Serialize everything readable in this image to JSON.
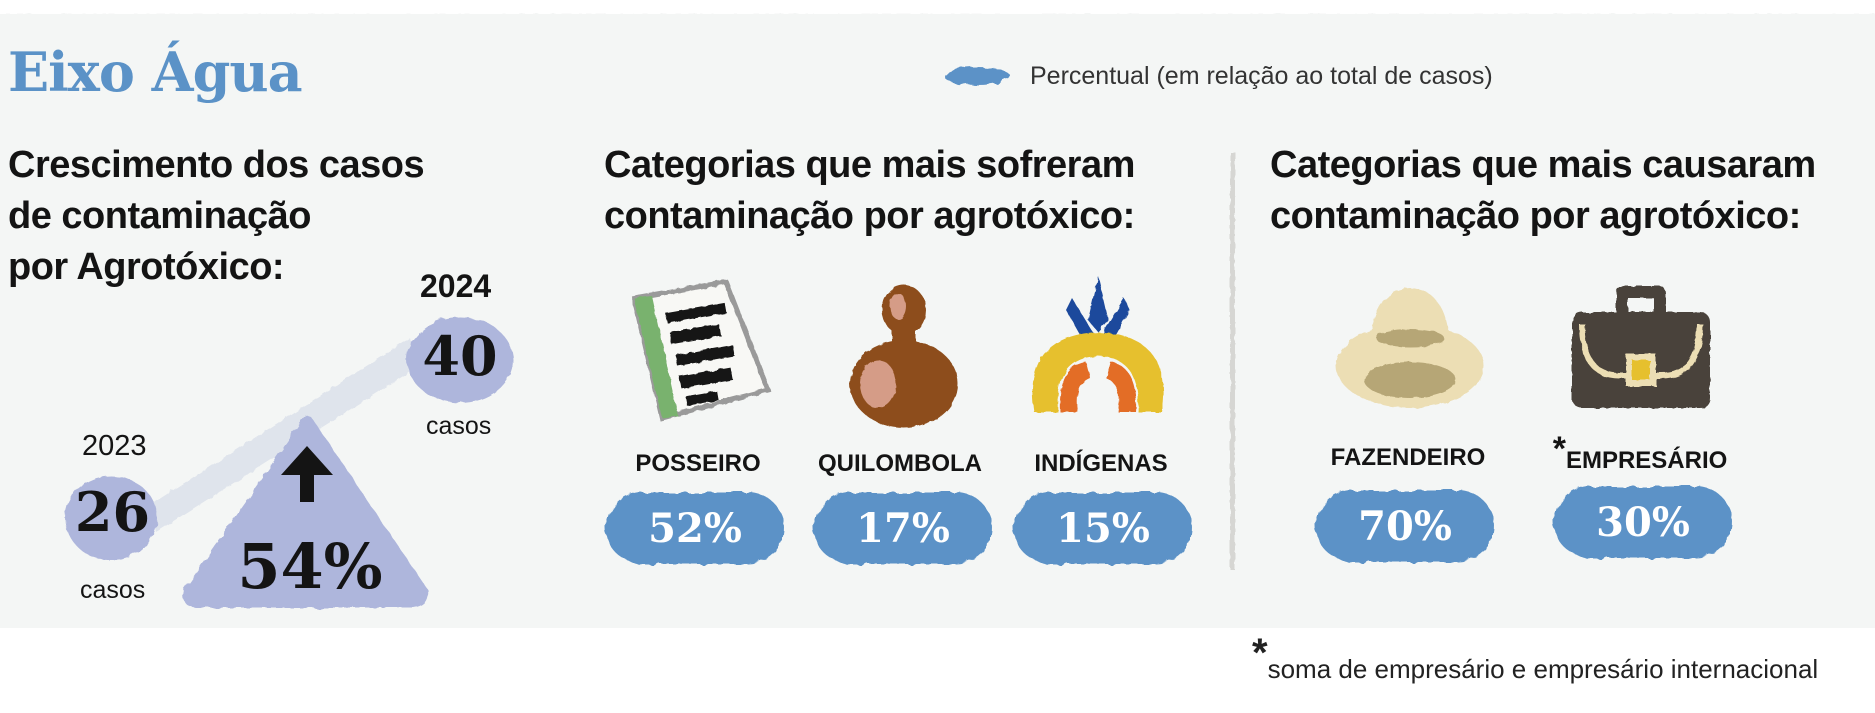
{
  "title": "Eixo Água",
  "legend": {
    "label": "Percentual (em relação ao total de casos)",
    "swatch_color": "#5b92c7"
  },
  "growth": {
    "heading_lines": [
      "Crescimento dos casos",
      "de contaminação",
      "por Agrotóxico:"
    ],
    "start": {
      "year": "2023",
      "count": "26",
      "unit": "casos"
    },
    "end": {
      "year": "2024",
      "count": "40",
      "unit": "casos"
    },
    "increase": "54%",
    "increase_icon": "up-arrow-icon"
  },
  "victims": {
    "heading_lines": [
      "Categorias que mais sofreram",
      "contaminação por agrotóxico:"
    ],
    "items": [
      {
        "label": "POSSEIRO",
        "percent": "52%",
        "value": 52,
        "icon": "document-icon"
      },
      {
        "label": "QUILOMBOLA",
        "percent": "17%",
        "value": 17,
        "icon": "gourd-icon"
      },
      {
        "label": "INDÍGENAS",
        "percent": "15%",
        "value": 15,
        "icon": "headdress-icon"
      }
    ]
  },
  "causers": {
    "heading_lines": [
      "Categorias que mais causaram",
      "contaminação por agrotóxico:"
    ],
    "items": [
      {
        "label": "FAZENDEIRO",
        "percent": "70%",
        "value": 70,
        "icon": "cowboy-hat-icon"
      },
      {
        "star": "*",
        "label": "EMPRESÁRIO",
        "percent": "30%",
        "value": 30,
        "icon": "briefcase-icon"
      }
    ]
  },
  "footnote": {
    "star": "*",
    "text": "soma de empresário e empresário internacional"
  },
  "colors": {
    "accent_blue": "#5b92c7",
    "lavender": "#aeb6dc",
    "connector": "#dfe4ec",
    "panel": "#f4f6f5",
    "heading": "#141414"
  }
}
